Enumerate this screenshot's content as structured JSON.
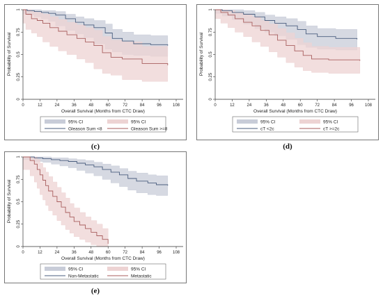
{
  "captions": [
    "(c)",
    "(d)",
    "(e)"
  ],
  "chart_data": [
    {
      "type": "line",
      "panel_id": "c",
      "xlabel": "Overall Survival (Months from CTC Draw)",
      "ylabel": "Probability of Survival",
      "xlim": [
        0,
        108
      ],
      "ylim": [
        0,
        1
      ],
      "xticks": [
        0,
        12,
        24,
        36,
        48,
        60,
        72,
        84,
        96,
        108
      ],
      "yticks": [
        0,
        0.25,
        0.5,
        0.75,
        1
      ],
      "ytick_labels": [
        "0",
        "0.25",
        "0.5",
        "0.75",
        "1"
      ],
      "grid": false,
      "legend_position": "bottom",
      "series": [
        {
          "name": "Gleason Sum <8",
          "color": "#4a5d7e",
          "band_color": "#c8ccd8",
          "x": [
            0,
            3,
            8,
            13,
            18,
            23,
            30,
            37,
            43,
            50,
            58,
            63,
            70,
            78,
            90,
            102
          ],
          "y": [
            1.0,
            0.99,
            0.98,
            0.97,
            0.96,
            0.94,
            0.9,
            0.86,
            0.83,
            0.8,
            0.74,
            0.68,
            0.65,
            0.62,
            0.61,
            0.6
          ],
          "lo": [
            0.98,
            0.96,
            0.94,
            0.92,
            0.9,
            0.87,
            0.82,
            0.77,
            0.73,
            0.69,
            0.62,
            0.56,
            0.53,
            0.5,
            0.49,
            0.48
          ],
          "hi": [
            1.0,
            1.0,
            1.0,
            0.99,
            0.99,
            0.98,
            0.95,
            0.92,
            0.9,
            0.88,
            0.84,
            0.78,
            0.75,
            0.72,
            0.71,
            0.7
          ]
        },
        {
          "name": "Gleason Sum >=8",
          "color": "#a85e5e",
          "band_color": "#edd3d3",
          "x": [
            0,
            2,
            6,
            10,
            14,
            19,
            25,
            31,
            38,
            44,
            50,
            56,
            62,
            70,
            84,
            102
          ],
          "y": [
            1.0,
            0.95,
            0.9,
            0.88,
            0.85,
            0.8,
            0.76,
            0.72,
            0.68,
            0.64,
            0.6,
            0.52,
            0.47,
            0.45,
            0.4,
            0.38
          ],
          "lo": [
            0.95,
            0.85,
            0.78,
            0.74,
            0.7,
            0.64,
            0.59,
            0.54,
            0.5,
            0.45,
            0.41,
            0.34,
            0.29,
            0.27,
            0.22,
            0.2
          ],
          "hi": [
            1.0,
            1.0,
            0.98,
            0.97,
            0.95,
            0.92,
            0.89,
            0.86,
            0.83,
            0.8,
            0.77,
            0.7,
            0.66,
            0.64,
            0.59,
            0.57
          ]
        }
      ],
      "legend": [
        {
          "label": "95% CI",
          "kind": "band",
          "color": "#c8ccd8"
        },
        {
          "label": "95% CI",
          "kind": "band",
          "color": "#edd3d3"
        },
        {
          "label": "Gleason Sum <8",
          "kind": "line",
          "color": "#4a5d7e"
        },
        {
          "label": "Gleason Sum >=8",
          "kind": "line",
          "color": "#a85e5e"
        }
      ]
    },
    {
      "type": "line",
      "panel_id": "d",
      "xlabel": "Overall Survival (Months from CTC Draw)",
      "ylabel": "Probability of Survival",
      "xlim": [
        0,
        108
      ],
      "ylim": [
        0,
        1
      ],
      "xticks": [
        0,
        12,
        24,
        36,
        48,
        60,
        72,
        84,
        96,
        108
      ],
      "yticks": [
        0,
        0.25,
        0.5,
        0.75,
        1
      ],
      "ytick_labels": [
        "0",
        "0.25",
        "0.5",
        "0.75",
        "1"
      ],
      "grid": false,
      "legend_position": "bottom",
      "series": [
        {
          "name": "cT <2c",
          "color": "#4a5d7e",
          "band_color": "#c8ccd8",
          "x": [
            0,
            5,
            12,
            20,
            28,
            35,
            42,
            50,
            58,
            64,
            72,
            85,
            100
          ],
          "y": [
            1.0,
            0.99,
            0.97,
            0.95,
            0.92,
            0.88,
            0.85,
            0.82,
            0.78,
            0.73,
            0.7,
            0.68,
            0.67
          ],
          "lo": [
            0.98,
            0.96,
            0.93,
            0.89,
            0.84,
            0.79,
            0.75,
            0.71,
            0.67,
            0.61,
            0.58,
            0.56,
            0.55
          ],
          "hi": [
            1.0,
            1.0,
            1.0,
            0.99,
            0.97,
            0.94,
            0.92,
            0.9,
            0.87,
            0.82,
            0.79,
            0.78,
            0.77
          ]
        },
        {
          "name": "cT >=2c",
          "color": "#a85e5e",
          "band_color": "#edd3d3",
          "x": [
            0,
            4,
            9,
            14,
            20,
            26,
            32,
            38,
            44,
            50,
            56,
            62,
            68,
            80,
            102
          ],
          "y": [
            1.0,
            0.97,
            0.94,
            0.9,
            0.86,
            0.82,
            0.77,
            0.72,
            0.66,
            0.6,
            0.54,
            0.49,
            0.45,
            0.44,
            0.43
          ],
          "lo": [
            0.94,
            0.9,
            0.85,
            0.8,
            0.75,
            0.7,
            0.64,
            0.59,
            0.53,
            0.47,
            0.41,
            0.36,
            0.32,
            0.3,
            0.29
          ],
          "hi": [
            1.0,
            1.0,
            0.99,
            0.97,
            0.95,
            0.92,
            0.88,
            0.84,
            0.79,
            0.74,
            0.68,
            0.63,
            0.59,
            0.58,
            0.57
          ]
        }
      ],
      "legend": [
        {
          "label": "95% CI",
          "kind": "band",
          "color": "#c8ccd8"
        },
        {
          "label": "95% CI",
          "kind": "band",
          "color": "#edd3d3"
        },
        {
          "label": "cT <2c",
          "kind": "line",
          "color": "#4a5d7e"
        },
        {
          "label": "cT >=2c",
          "kind": "line",
          "color": "#a85e5e"
        }
      ]
    },
    {
      "type": "line",
      "panel_id": "e",
      "xlabel": "Overall Survival (Months from CTC Draw)",
      "ylabel": "Probability of Survival",
      "xlim": [
        0,
        108
      ],
      "ylim": [
        0,
        1
      ],
      "xticks": [
        0,
        12,
        24,
        36,
        48,
        60,
        72,
        84,
        96,
        108
      ],
      "yticks": [
        0,
        0.25,
        0.5,
        0.75,
        1
      ],
      "ytick_labels": [
        "0",
        "0.25",
        "0.5",
        "0.75",
        "1"
      ],
      "grid": false,
      "legend_position": "bottom",
      "series": [
        {
          "name": "Non-Metastatic",
          "color": "#4a5d7e",
          "band_color": "#c8ccd8",
          "x": [
            0,
            8,
            14,
            20,
            26,
            32,
            38,
            44,
            50,
            56,
            62,
            68,
            74,
            80,
            88,
            94,
            102
          ],
          "y": [
            1.0,
            0.99,
            0.98,
            0.97,
            0.96,
            0.95,
            0.93,
            0.91,
            0.89,
            0.86,
            0.83,
            0.8,
            0.76,
            0.73,
            0.71,
            0.69,
            0.68
          ],
          "lo": [
            0.99,
            0.97,
            0.95,
            0.94,
            0.92,
            0.9,
            0.88,
            0.85,
            0.82,
            0.79,
            0.75,
            0.71,
            0.67,
            0.63,
            0.6,
            0.58,
            0.57
          ],
          "hi": [
            1.0,
            1.0,
            1.0,
            0.99,
            0.99,
            0.98,
            0.97,
            0.96,
            0.94,
            0.92,
            0.9,
            0.87,
            0.84,
            0.82,
            0.8,
            0.79,
            0.78
          ]
        },
        {
          "name": "Metastatic",
          "color": "#a85e5e",
          "band_color": "#edd3d3",
          "x": [
            0,
            5,
            8,
            10,
            12,
            14,
            16,
            18,
            21,
            24,
            27,
            30,
            33,
            36,
            40,
            44,
            48,
            52,
            56,
            60
          ],
          "y": [
            1.0,
            0.96,
            0.92,
            0.86,
            0.8,
            0.74,
            0.68,
            0.62,
            0.56,
            0.5,
            0.44,
            0.38,
            0.33,
            0.28,
            0.24,
            0.2,
            0.16,
            0.12,
            0.08,
            0.03
          ],
          "lo": [
            0.93,
            0.86,
            0.79,
            0.72,
            0.65,
            0.58,
            0.52,
            0.46,
            0.4,
            0.35,
            0.29,
            0.24,
            0.19,
            0.15,
            0.11,
            0.08,
            0.05,
            0.02,
            0.0,
            0.0
          ],
          "hi": [
            1.0,
            1.0,
            1.0,
            0.97,
            0.93,
            0.88,
            0.83,
            0.78,
            0.72,
            0.66,
            0.6,
            0.54,
            0.48,
            0.43,
            0.38,
            0.33,
            0.29,
            0.25,
            0.2,
            0.15
          ]
        }
      ],
      "legend": [
        {
          "label": "95% CI",
          "kind": "band",
          "color": "#c8ccd8"
        },
        {
          "label": "95% CI",
          "kind": "band",
          "color": "#edd3d3"
        },
        {
          "label": "Non-Metastatic",
          "kind": "line",
          "color": "#4a5d7e"
        },
        {
          "label": "Metastatic",
          "kind": "line",
          "color": "#a85e5e"
        }
      ]
    }
  ]
}
